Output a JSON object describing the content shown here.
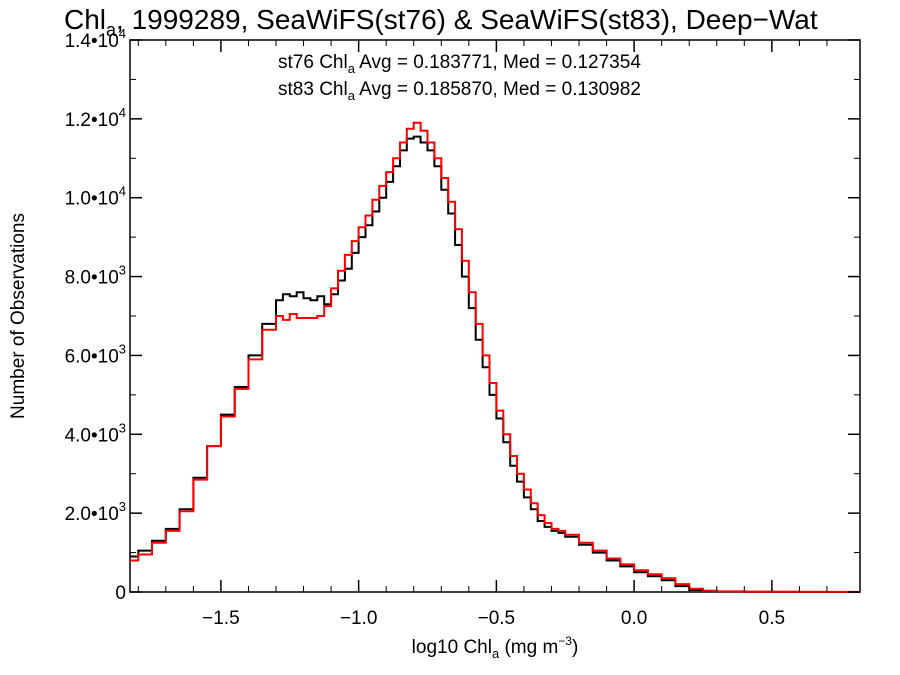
{
  "chart_data": {
    "type": "line",
    "title": {
      "prefix": "Chl",
      "sub": "a",
      "rest": ", 1999289, SeaWiFS(st76) & SeaWiFS(st83), Deep−Wat"
    },
    "xlabel": {
      "prefix": "log10 Chl",
      "sub": "a",
      "mid": " (mg m",
      "sup": "−3",
      "end": ")"
    },
    "ylabel": "Number of Observations",
    "xlim": [
      -1.83,
      0.82
    ],
    "ylim": [
      0,
      14000
    ],
    "grid": false,
    "step": true,
    "x_ticks": [
      {
        "value": -1.5,
        "label": "−1.5"
      },
      {
        "value": -1.0,
        "label": "−1.0"
      },
      {
        "value": -0.5,
        "label": "−0.5"
      },
      {
        "value": 0.0,
        "label": "0.0"
      },
      {
        "value": 0.5,
        "label": "0.5"
      }
    ],
    "y_ticks": [
      {
        "value": 0,
        "mant": "0",
        "exp": ""
      },
      {
        "value": 2000,
        "mant": "2.0•10",
        "exp": "3"
      },
      {
        "value": 4000,
        "mant": "4.0•10",
        "exp": "3"
      },
      {
        "value": 6000,
        "mant": "6.0•10",
        "exp": "3"
      },
      {
        "value": 8000,
        "mant": "8.0•10",
        "exp": "3"
      },
      {
        "value": 10000,
        "mant": "1.0•10",
        "exp": "4"
      },
      {
        "value": 12000,
        "mant": "1.2•10",
        "exp": "4"
      },
      {
        "value": 14000,
        "mant": "1.4•10",
        "exp": "4"
      }
    ],
    "x": [
      -1.83,
      -1.8,
      -1.75,
      -1.7,
      -1.65,
      -1.6,
      -1.55,
      -1.5,
      -1.45,
      -1.4,
      -1.35,
      -1.3,
      -1.275,
      -1.25,
      -1.225,
      -1.2,
      -1.175,
      -1.15,
      -1.125,
      -1.1,
      -1.075,
      -1.05,
      -1.025,
      -1.0,
      -0.975,
      -0.95,
      -0.925,
      -0.9,
      -0.875,
      -0.85,
      -0.825,
      -0.8,
      -0.775,
      -0.75,
      -0.725,
      -0.7,
      -0.675,
      -0.65,
      -0.625,
      -0.6,
      -0.575,
      -0.55,
      -0.525,
      -0.5,
      -0.475,
      -0.45,
      -0.425,
      -0.4,
      -0.375,
      -0.35,
      -0.325,
      -0.3,
      -0.275,
      -0.25,
      -0.2,
      -0.15,
      -0.1,
      -0.05,
      0.0,
      0.05,
      0.1,
      0.15,
      0.2,
      0.25,
      0.3,
      0.4,
      0.5,
      0.6,
      0.7,
      0.8
    ],
    "series": [
      {
        "name": "st76",
        "color": "#000000",
        "label": {
          "pre": "st76 Chl",
          "sub": "a",
          "post": " Avg = 0.183771, Med = 0.127354"
        },
        "values": [
          900,
          1050,
          1300,
          1600,
          2100,
          2900,
          3700,
          4500,
          5200,
          6000,
          6800,
          7400,
          7550,
          7500,
          7600,
          7450,
          7400,
          7500,
          7300,
          7550,
          7900,
          8200,
          8600,
          9000,
          9300,
          9650,
          10000,
          10400,
          10800,
          11200,
          11500,
          11550,
          11400,
          11200,
          10800,
          10200,
          9600,
          8800,
          8000,
          7200,
          6400,
          5700,
          5000,
          4400,
          3800,
          3200,
          2800,
          2400,
          2100,
          1800,
          1650,
          1550,
          1500,
          1400,
          1200,
          1000,
          800,
          650,
          500,
          400,
          300,
          150,
          50,
          20,
          10,
          5,
          3,
          2,
          1,
          1
        ]
      },
      {
        "name": "st83",
        "color": "#ff0000",
        "label": {
          "pre": "st83 Chl",
          "sub": "a",
          "post": " Avg = 0.185870, Med = 0.130982"
        },
        "values": [
          800,
          950,
          1250,
          1550,
          2050,
          2850,
          3700,
          4450,
          5150,
          5900,
          6650,
          7000,
          6900,
          7050,
          6950,
          6950,
          6950,
          7000,
          7250,
          7700,
          8150,
          8550,
          8900,
          9250,
          9550,
          9950,
          10300,
          10650,
          11000,
          11400,
          11750,
          11900,
          11700,
          11400,
          11000,
          10500,
          9900,
          9200,
          8400,
          7600,
          6800,
          6000,
          5300,
          4600,
          4000,
          3450,
          3000,
          2600,
          2250,
          1950,
          1750,
          1600,
          1550,
          1450,
          1250,
          1050,
          850,
          700,
          550,
          450,
          350,
          200,
          80,
          30,
          15,
          8,
          5,
          3,
          2,
          1
        ]
      }
    ]
  }
}
